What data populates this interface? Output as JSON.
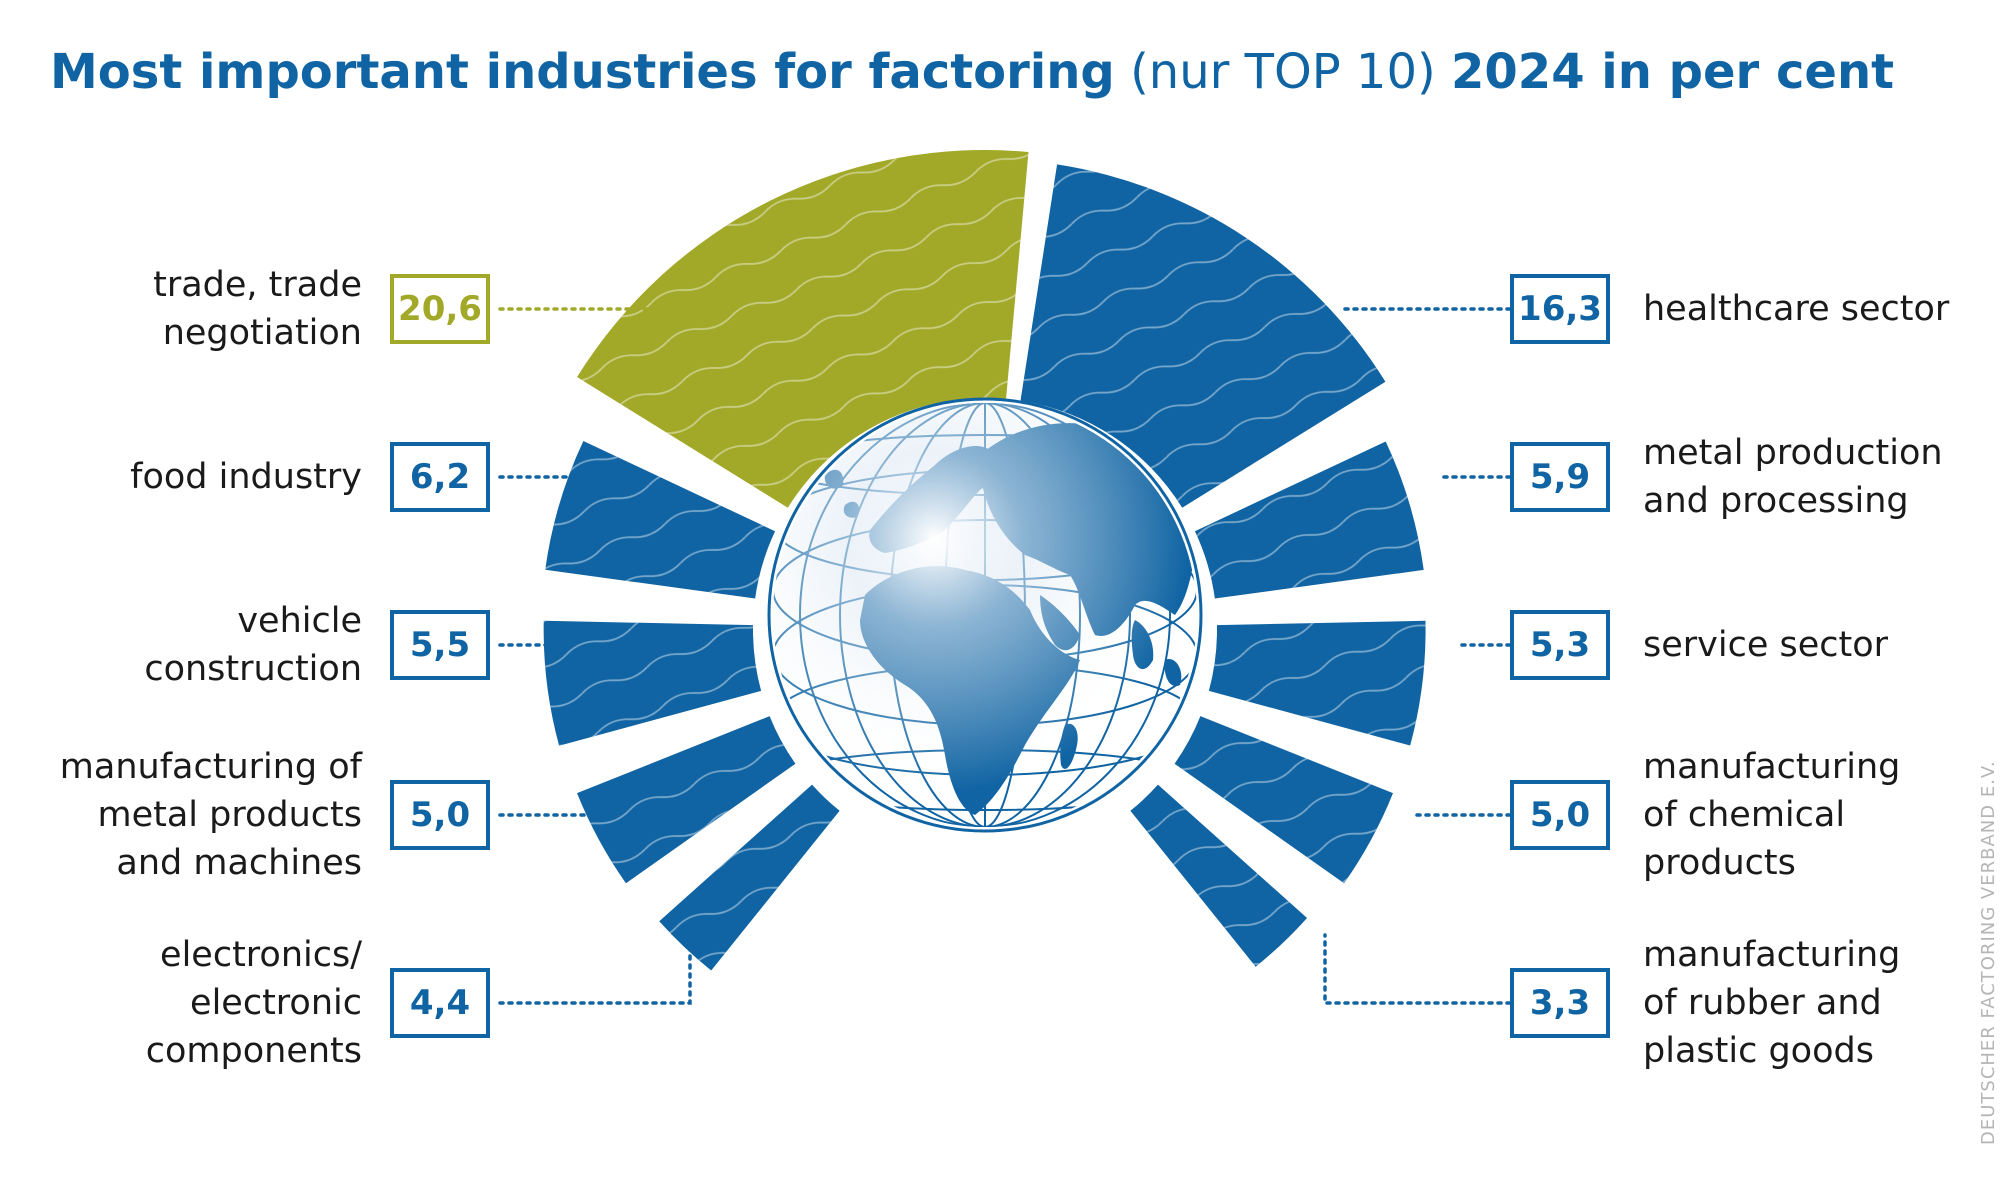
{
  "title": {
    "part1": "Most important industries for factoring",
    "part2": "(nur TOP 10)",
    "part3": "2024 in per cent"
  },
  "colors": {
    "primary": "#1064a3",
    "highlight": "#a2a828",
    "text": "#1a1a1a",
    "credit": "#b5b5b5"
  },
  "center_icon": "globe-icon",
  "chart_data": {
    "type": "pie",
    "unit": "per cent",
    "categories": [
      "trade, trade negotiation",
      "healthcare sector",
      "metal production and processing",
      "service sector",
      "manufacturing of chemical products",
      "manufacturing of rubber and plastic goods",
      "electronics/ electronic components",
      "manufacturing of metal products and machines",
      "vehicle construction",
      "food industry"
    ],
    "values": [
      20.6,
      16.3,
      5.9,
      5.3,
      5.0,
      3.3,
      4.4,
      5.0,
      5.5,
      6.2
    ],
    "value_labels": [
      "20,6",
      "16,3",
      "5,9",
      "5,3",
      "5,0",
      "3,3",
      "4,4",
      "5,0",
      "5,5",
      "6,2"
    ],
    "highlighted": "trade, trade negotiation"
  },
  "labels": {
    "left": [
      {
        "lines": [
          "trade, trade",
          "negotiation"
        ],
        "value": "20,6"
      },
      {
        "lines": [
          "food industry"
        ],
        "value": "6,2"
      },
      {
        "lines": [
          "vehicle",
          "construction"
        ],
        "value": "5,5"
      },
      {
        "lines": [
          "manufacturing of",
          "metal products",
          "and machines"
        ],
        "value": "5,0"
      },
      {
        "lines": [
          "electronics/",
          "electronic",
          "components"
        ],
        "value": "4,4"
      }
    ],
    "right": [
      {
        "lines": [
          "healthcare sector"
        ],
        "value": "16,3"
      },
      {
        "lines": [
          "metal production",
          "and processing"
        ],
        "value": "5,9"
      },
      {
        "lines": [
          "service sector"
        ],
        "value": "5,3"
      },
      {
        "lines": [
          "manufacturing",
          "of chemical",
          "products"
        ],
        "value": "5,0"
      },
      {
        "lines": [
          "manufacturing",
          "of rubber and",
          "plastic goods"
        ],
        "value": "3,3"
      }
    ]
  },
  "credit": "DEUTSCHER FACTORING VERBAND E.V."
}
